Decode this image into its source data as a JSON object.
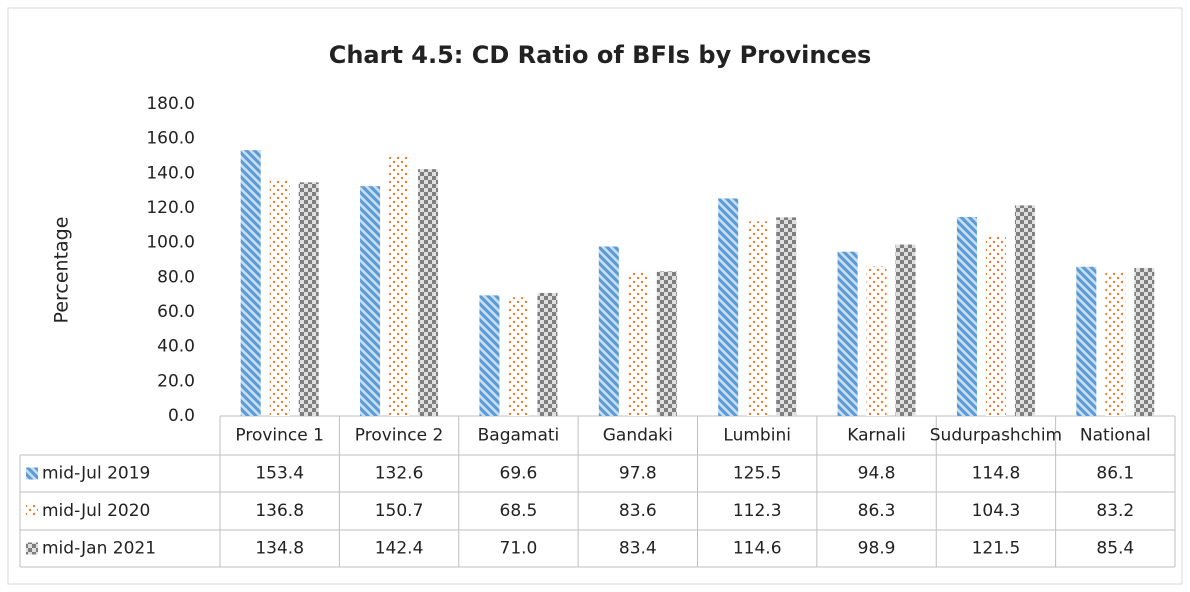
{
  "chart_data": {
    "type": "bar",
    "title": "Chart 4.5: CD Ratio of BFIs by Provinces",
    "y_label": "Percentage",
    "categories": [
      "Province 1",
      "Province 2",
      "Bagamati",
      "Gandaki",
      "Lumbini",
      "Karnali",
      "Sudurpashchim",
      "National"
    ],
    "series": [
      {
        "name": "mid-Jul 2019",
        "color": "#5b9bd5",
        "values": [
          153.4,
          132.6,
          69.6,
          97.8,
          125.5,
          94.8,
          114.8,
          86.1
        ],
        "value_labels": [
          "153.4",
          "132.6",
          "69.6",
          "97.8",
          "125.5",
          "94.8",
          "114.8",
          "86.1"
        ]
      },
      {
        "name": "mid-Jul 2020",
        "color": "#ed7d31",
        "values": [
          136.8,
          150.7,
          68.5,
          83.6,
          112.3,
          86.3,
          104.3,
          83.2
        ],
        "value_labels": [
          "136.8",
          "150.7",
          "68.5",
          "83.6",
          "112.3",
          "86.3",
          "104.3",
          "83.2"
        ]
      },
      {
        "name": "mid-Jan 2021",
        "color": "#7f7f7f",
        "values": [
          134.8,
          142.4,
          71,
          83.4,
          114.6,
          98.9,
          121.5,
          85.4
        ],
        "value_labels": [
          "134.8",
          "142.4",
          "71.0",
          "83.4",
          "114.6",
          "98.9",
          "121.5",
          "85.4"
        ]
      }
    ],
    "ylim": [
      0,
      180
    ],
    "yticks": [
      {
        "value": 0,
        "label": "0.0"
      },
      {
        "value": 20,
        "label": "20.0"
      },
      {
        "value": 40,
        "label": "40.0"
      },
      {
        "value": 60,
        "label": "60.0"
      },
      {
        "value": 80,
        "label": "80.0"
      },
      {
        "value": 100,
        "label": "100.0"
      },
      {
        "value": 120,
        "label": "120.0"
      },
      {
        "value": 140,
        "label": "140.0"
      },
      {
        "value": 160,
        "label": "160.0"
      },
      {
        "value": 180,
        "label": "180.0"
      }
    ],
    "grid": false
  }
}
